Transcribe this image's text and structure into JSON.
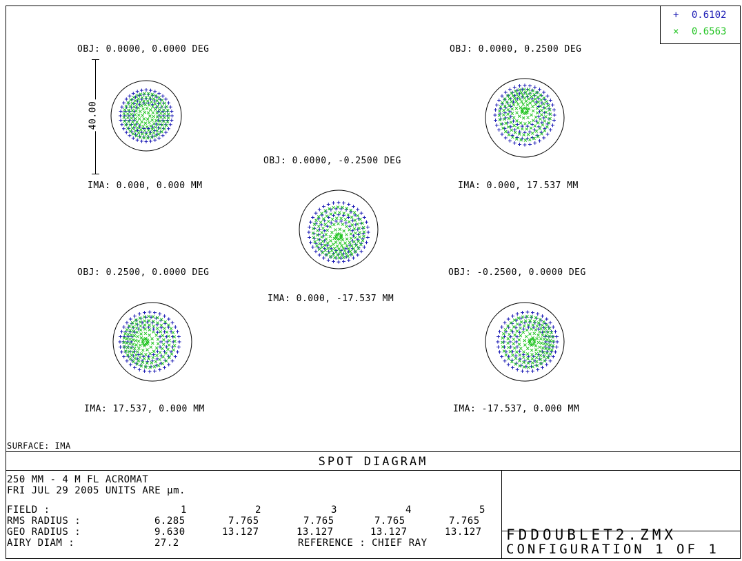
{
  "legend": [
    {
      "marker": "+",
      "value": "0.6102",
      "color": "#1a1ab4"
    },
    {
      "marker": "×",
      "value": "0.6563",
      "color": "#22c422"
    }
  ],
  "spots": [
    {
      "obj": "OBJ: 0.0000, 0.0000 DEG",
      "ima": "IMA: 0.000, 0.000 MM",
      "shape": "on-axis"
    },
    {
      "obj": "OBJ: 0.0000, 0.2500 DEG",
      "ima": "IMA: 0.000, 17.537 MM",
      "shape": "off-axis-up"
    },
    {
      "obj": "OBJ: 0.0000, -0.2500 DEG",
      "ima": "IMA: 0.000, -17.537 MM",
      "shape": "off-axis-down"
    },
    {
      "obj": "OBJ: 0.2500, 0.0000 DEG",
      "ima": "IMA: 17.537, 0.000 MM",
      "shape": "off-axis-right"
    },
    {
      "obj": "OBJ: -0.2500, 0.0000 DEG",
      "ima": "IMA: -17.537, 0.000 MM",
      "shape": "off-axis-left"
    }
  ],
  "scale_bar": "40.00",
  "surface": "SURFACE: IMA",
  "title": "SPOT DIAGRAM",
  "info": {
    "line1": "250 MM - 4 M FL  ACROMAT",
    "line2": "FRI JUL 29 2005  UNITS ARE µm.",
    "field_label": "FIELD       :",
    "rms_label": "RMS RADIUS :",
    "geo_label": "GEO RADIUS :",
    "airy_label": "AIRY DIAM   :",
    "fields": [
      "1",
      "2",
      "3",
      "4",
      "5"
    ],
    "rms": [
      "6.285",
      "7.765",
      "7.765",
      "7.765",
      "7.765"
    ],
    "geo": [
      "9.630",
      "13.127",
      "13.127",
      "13.127",
      "13.127"
    ],
    "airy": "27.2",
    "reference": "REFERENCE  : CHIEF RAY"
  },
  "file_name": "FDDOUBLET2.ZMX",
  "configuration": "CONFIGURATION 1 OF 1"
}
